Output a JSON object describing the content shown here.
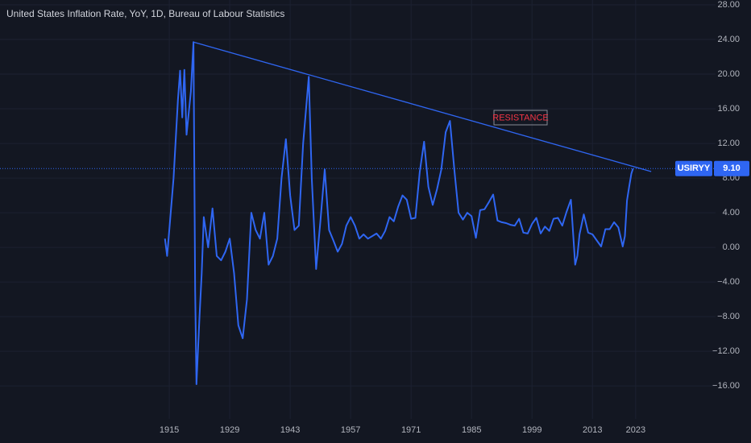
{
  "chart_data": {
    "type": "line",
    "title": "United States Inflation Rate, YoY, 1D, Bureau of Labour Statistics",
    "xlim": [
      1875.8,
      2041.5
    ],
    "ylim": [
      -19.8,
      28.56
    ],
    "xticks": [
      1915,
      1929,
      1943,
      1957,
      1971,
      1985,
      1999,
      2013,
      2023
    ],
    "yticks": [
      {
        "value": 28,
        "label": "28.00"
      },
      {
        "value": 24,
        "label": "24.00"
      },
      {
        "value": 20,
        "label": "20.00"
      },
      {
        "value": 16,
        "label": "16.00"
      },
      {
        "value": 12,
        "label": "12.00"
      },
      {
        "value": 8,
        "label": "8.00"
      },
      {
        "value": 4,
        "label": "4.00"
      },
      {
        "value": 0,
        "label": "0.00"
      },
      {
        "value": -4,
        "label": "−4.00"
      },
      {
        "value": -8,
        "label": "−8.00"
      },
      {
        "value": -12,
        "label": "−12.00"
      },
      {
        "value": -16,
        "label": "−16.00"
      }
    ],
    "grid": true,
    "series": [
      {
        "name": "USIRYY",
        "color": "#2f66f2",
        "x": [
          1914,
          1914.5,
          1915,
          1916,
          1917,
          1917.5,
          1918,
          1918.5,
          1919,
          1920,
          1920.6,
          1921,
          1921.3,
          1922,
          1922.5,
          1923,
          1924,
          1925,
          1926,
          1927,
          1928,
          1929,
          1930,
          1931,
          1932,
          1933,
          1934,
          1935,
          1936,
          1937,
          1938,
          1939,
          1940,
          1941,
          1942,
          1943,
          1944,
          1945,
          1946,
          1947.3,
          1948,
          1949,
          1950,
          1951,
          1952,
          1953,
          1954,
          1955,
          1956,
          1957,
          1958,
          1959,
          1960,
          1961,
          1962,
          1963,
          1964,
          1965,
          1966,
          1967,
          1968,
          1969,
          1970,
          1971,
          1972,
          1973,
          1974,
          1975,
          1976,
          1977,
          1978,
          1979,
          1980,
          1981,
          1982,
          1983,
          1984,
          1985,
          1986,
          1987,
          1988,
          1989,
          1990,
          1991,
          1992,
          1993,
          1994,
          1995,
          1996,
          1997,
          1998,
          1999,
          2000,
          2001,
          2002,
          2003,
          2004,
          2005,
          2006,
          2007,
          2008,
          2009,
          2009.5,
          2010,
          2011,
          2012,
          2013,
          2014,
          2015,
          2016,
          2017,
          2018,
          2019,
          2020,
          2020.5,
          2021,
          2021.5,
          2022,
          2022.4
        ],
        "values": [
          1,
          -1,
          2,
          8,
          17,
          20.4,
          15,
          20.5,
          13,
          18,
          23.7,
          -5,
          -15.8,
          -8,
          -3,
          3.5,
          0,
          4.5,
          -1,
          -1.5,
          -0.5,
          1,
          -3,
          -9,
          -10.5,
          -6,
          4,
          2,
          1,
          4,
          -2,
          -1,
          1,
          8,
          12.5,
          6,
          2,
          2.5,
          12,
          19.7,
          8,
          -2.5,
          3,
          9,
          2,
          0.8,
          -0.5,
          0.4,
          2.5,
          3.5,
          2.5,
          1,
          1.5,
          1,
          1.3,
          1.6,
          1,
          1.9,
          3.5,
          3,
          4.7,
          6,
          5.5,
          3.3,
          3.4,
          8.7,
          12.2,
          7,
          4.9,
          6.7,
          9,
          13.3,
          14.6,
          9,
          4,
          3.2,
          4,
          3.6,
          1.1,
          4.3,
          4.4,
          5.2,
          6.1,
          3.1,
          2.9,
          2.8,
          2.6,
          2.5,
          3.3,
          1.7,
          1.6,
          2.7,
          3.4,
          1.6,
          2.4,
          1.9,
          3.3,
          3.4,
          2.5,
          4.1,
          5.5,
          -2,
          -1,
          1.5,
          3.8,
          1.7,
          1.5,
          0.8,
          0.1,
          2.1,
          2.1,
          2.9,
          2.3,
          0.1,
          1.3,
          5.4,
          7,
          8.5,
          9.1
        ]
      }
    ],
    "last_value": {
      "value": 9.1,
      "label": "9.10"
    },
    "trendline": {
      "label": "RESISTANCE",
      "color": "#2f66f2",
      "x": [
        1920.6,
        2026.6
      ],
      "y": [
        23.7,
        8.75
      ]
    }
  }
}
